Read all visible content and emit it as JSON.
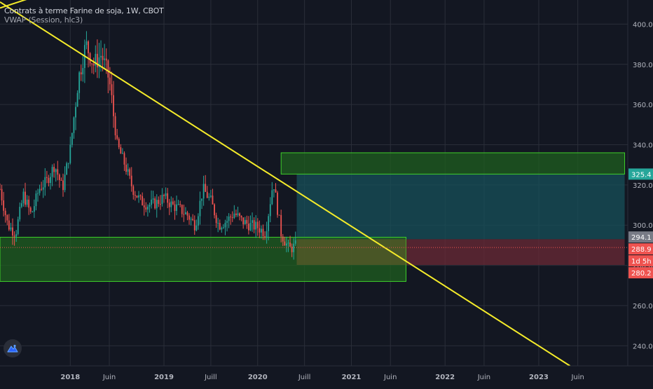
{
  "header": {
    "symbol_line": "Contrats à terme Farine de soja, 1W, CBOT",
    "indicator_line": "VWAP (Session, hlc3)"
  },
  "icons": {
    "logo": "tradingview-logo-icon"
  },
  "colors": {
    "background": "#131722",
    "grid": "#2a2e39",
    "up_candle": "#26a69a",
    "down_candle": "#ef5350",
    "trendline": "#f5ec2a",
    "support_zone": "#1f5f1f",
    "zone_border": "#3ecf2a",
    "target_zone": "#17505a",
    "stop_zone": "#6b2a36",
    "entry_zone": "#5a5a2a"
  },
  "chart_data": {
    "type": "candlestick",
    "timeframe": "1W",
    "exchange": "CBOT",
    "ylim": [
      230,
      412
    ],
    "y_ticks": [
      240,
      260,
      280,
      300,
      320,
      340,
      360,
      380,
      400
    ],
    "y_tick_labels": [
      "240.0",
      "260.0",
      "280.0",
      "300.0",
      "320.0",
      "340.0",
      "360.0",
      "380.0",
      "400.0"
    ],
    "x_tick_labels": [
      "2018",
      "Juin",
      "2019",
      "Juill",
      "2020",
      "Juill",
      "2021",
      "Juin",
      "2022",
      "Juin",
      "2023",
      "Juin"
    ],
    "x_tick_dates": [
      "2018-01",
      "2018-06",
      "2019-01",
      "2019-07",
      "2020-01",
      "2020-07",
      "2021-01",
      "2021-06",
      "2022-01",
      "2022-06",
      "2023-01",
      "2023-06"
    ],
    "price_path": [
      [
        "2017-04",
        318
      ],
      [
        "2017-05",
        300
      ],
      [
        "2017-06",
        296
      ],
      [
        "2017-07",
        315
      ],
      [
        "2017-08",
        305
      ],
      [
        "2017-09",
        318
      ],
      [
        "2017-10",
        322
      ],
      [
        "2017-11",
        330
      ],
      [
        "2017-12",
        318
      ],
      [
        "2018-01",
        338
      ],
      [
        "2018-02",
        372
      ],
      [
        "2018-03",
        390
      ],
      [
        "2018-04",
        380
      ],
      [
        "2018-05",
        385
      ],
      [
        "2018-06",
        372
      ],
      [
        "2018-07",
        340
      ],
      [
        "2018-08",
        330
      ],
      [
        "2018-09",
        318
      ],
      [
        "2018-10",
        312
      ],
      [
        "2018-11",
        310
      ],
      [
        "2018-12",
        311
      ],
      [
        "2019-01",
        314
      ],
      [
        "2019-02",
        310
      ],
      [
        "2019-03",
        308
      ],
      [
        "2019-04",
        305
      ],
      [
        "2019-05",
        300
      ],
      [
        "2019-06",
        318
      ],
      [
        "2019-07",
        312
      ],
      [
        "2019-08",
        300
      ],
      [
        "2019-09",
        302
      ],
      [
        "2019-10",
        306
      ],
      [
        "2019-11",
        302
      ],
      [
        "2019-12",
        300
      ],
      [
        "2020-01",
        299
      ],
      [
        "2020-02",
        296
      ],
      [
        "2020-03",
        322
      ],
      [
        "2020-04",
        296
      ],
      [
        "2020-05",
        288
      ],
      [
        "2020-06",
        290
      ]
    ],
    "annotations": {
      "trendline_upper": {
        "from": [
          "2017-04",
          408
        ],
        "to": [
          "2018-03",
          422
        ]
      },
      "trendline_down": {
        "from": [
          "2017-04",
          411
        ],
        "to": [
          "2023-05",
          230
        ]
      },
      "support_zone": {
        "from": "2017-04",
        "to": "2021-08",
        "top": 294,
        "bottom": 272
      },
      "sell_zone": {
        "from": "2020-04",
        "to": "2023-12",
        "top": 336,
        "bottom": 325.4
      },
      "target_zone": {
        "from": "2020-06",
        "to": "2023-12",
        "top": 325.4,
        "bottom": 293
      },
      "stop_zone": {
        "from": "2021-08",
        "to": "2023-12",
        "top": 293,
        "bottom": 280.2
      },
      "entry_zone": {
        "from": "2020-06",
        "to": "2021-08",
        "top": 293,
        "bottom": 280.2
      }
    },
    "price_labels": [
      {
        "text": "325.4",
        "value": 325.4,
        "color": "#26a69a"
      },
      {
        "text": "294.1",
        "value": 294.1,
        "color": "#787b86"
      },
      {
        "text": "288.9",
        "value": 288.9,
        "color": "#ef5350"
      },
      {
        "text": "1d 5h",
        "value": 285,
        "color": "#ef5350"
      },
      {
        "text": "280.2",
        "value": 280.2,
        "color": "#ef5350"
      }
    ],
    "last_price": 288.9
  }
}
